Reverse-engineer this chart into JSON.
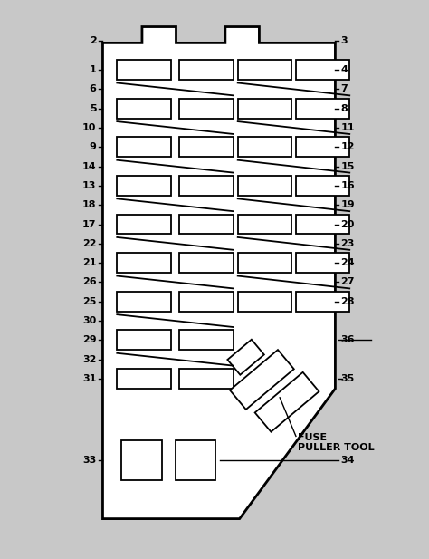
{
  "bg_color": "#c8c8c8",
  "line_color": "#000000",
  "text_color": "#000000",
  "fig_width": 4.74,
  "fig_height": 6.17,
  "dpi": 100,
  "fuse_puller_text": "FUSE\nPULLER TOOL"
}
